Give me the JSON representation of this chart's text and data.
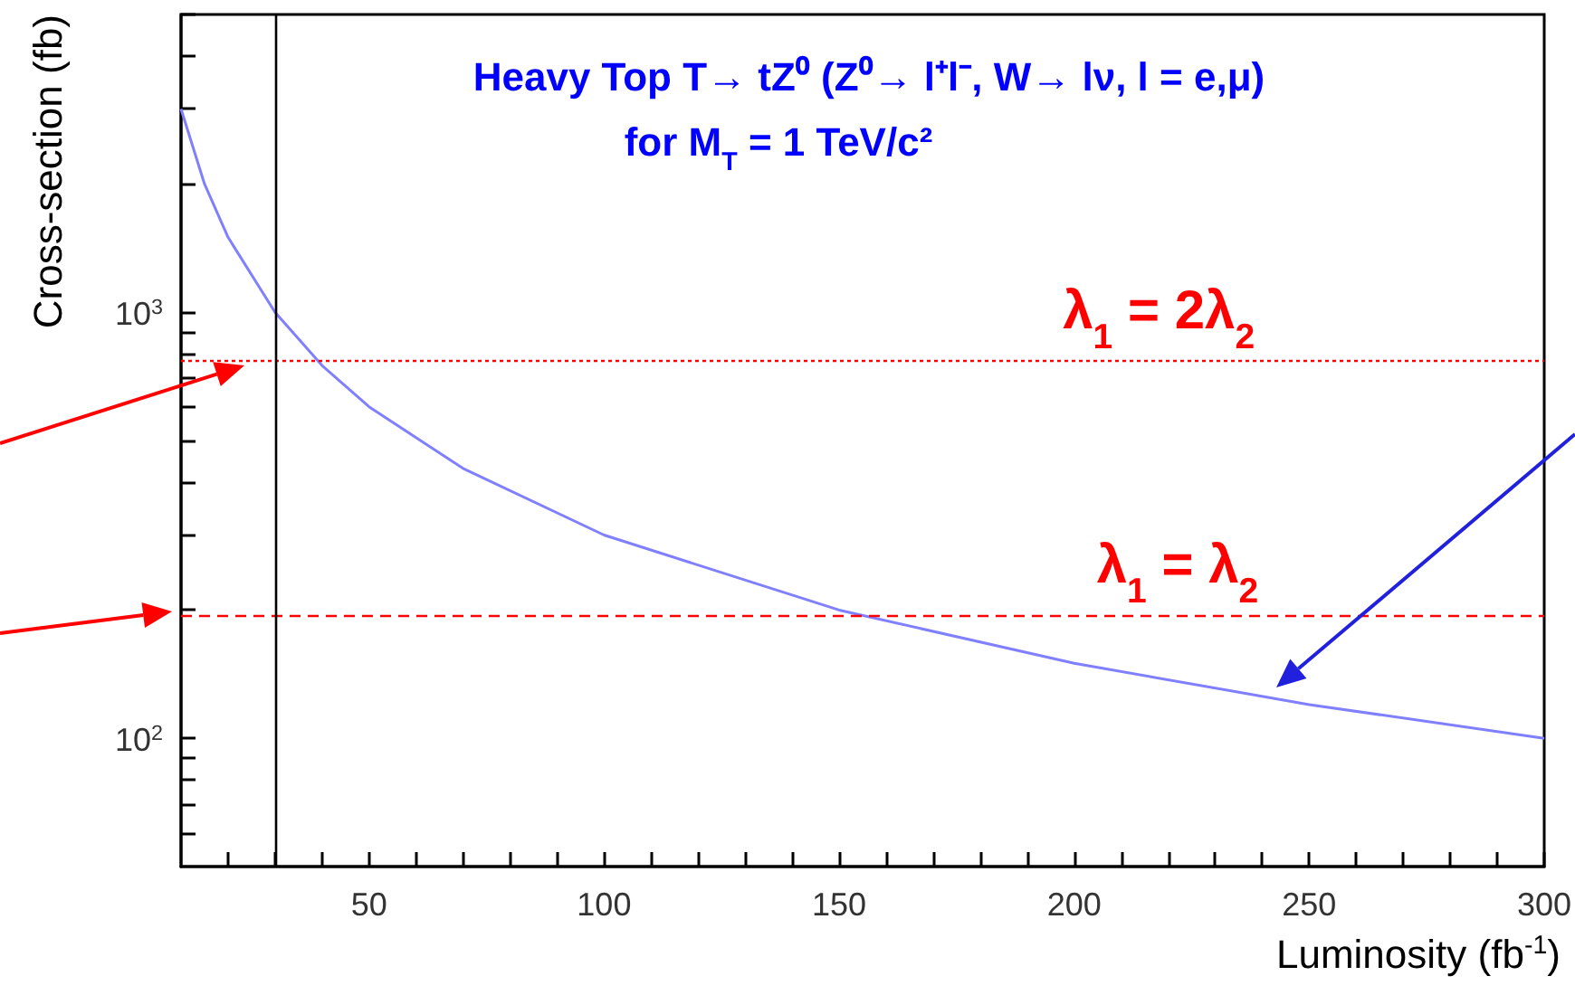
{
  "chart_data": {
    "type": "line",
    "title": "Heavy Top T→ tZ⁰ (Z⁰→ l⁺l⁻, W→ lν, l = e,μ)",
    "subtitle": "for M$_{T}$ = 1 TeV/c²",
    "xlabel": "Luminosity (fb$^{-1}$)",
    "ylabel": "Cross-section (fb)",
    "x": [
      10,
      15,
      20,
      30,
      40,
      50,
      70,
      100,
      150,
      200,
      250,
      300
    ],
    "series": [
      {
        "color": "#8080ff",
        "values": [
          3000,
          2000,
          1500,
          1000,
          750,
          600,
          430,
          300,
          200,
          150,
          120,
          100
        ]
      }
    ],
    "xlim": [
      10,
      300
    ],
    "xticks": [
      {
        "value": 20,
        "label": null
      },
      {
        "value": 30,
        "label": null
      },
      {
        "value": 40,
        "label": null
      },
      50,
      {
        "value": 60,
        "label": null
      },
      {
        "value": 70,
        "label": null
      },
      {
        "value": 80,
        "label": null
      },
      {
        "value": 90,
        "label": null
      },
      100,
      {
        "value": 110,
        "label": null
      },
      {
        "value": 120,
        "label": null
      },
      {
        "value": 130,
        "label": null
      },
      {
        "value": 140,
        "label": null
      },
      150,
      {
        "value": 160,
        "label": null
      },
      {
        "value": 170,
        "label": null
      },
      {
        "value": 180,
        "label": null
      },
      {
        "value": 190,
        "label": null
      },
      200,
      {
        "value": 210,
        "label": null
      },
      {
        "value": 220,
        "label": null
      },
      {
        "value": 230,
        "label": null
      },
      {
        "value": 240,
        "label": null
      },
      250,
      {
        "value": 260,
        "label": null
      },
      {
        "value": 270,
        "label": null
      },
      {
        "value": 280,
        "label": null
      },
      {
        "value": 290,
        "label": null
      },
      300
    ],
    "ylim": [
      50,
      5000
    ],
    "log": "y",
    "yticks": [
      {
        "value": 60,
        "label": null
      },
      {
        "value": 70,
        "label": null
      },
      {
        "value": 80,
        "label": null
      },
      {
        "value": 90,
        "label": null
      },
      {
        "value": 100,
        "label": "10$^{2}$"
      },
      {
        "value": 200,
        "label": null
      },
      {
        "value": 300,
        "label": null
      },
      {
        "value": 400,
        "label": null
      },
      {
        "value": 500,
        "label": null
      },
      {
        "value": 600,
        "label": null
      },
      {
        "value": 700,
        "label": null
      },
      {
        "value": 800,
        "label": null
      },
      {
        "value": 900,
        "label": null
      },
      {
        "value": 1000,
        "label": "10$^{3}$"
      },
      {
        "value": 2000,
        "label": null
      },
      {
        "value": 3000,
        "label": null
      },
      {
        "value": 4000,
        "label": null
      },
      {
        "value": 5000,
        "label": null
      }
    ],
    "ref_lines": [
      {
        "axis": "y",
        "value": 770,
        "color": "#ff0000",
        "line_style": "dotted"
      },
      {
        "axis": "y",
        "value": 195,
        "color": "#ff0000",
        "line_style": "dashed"
      },
      {
        "axis": "x",
        "value": 30,
        "color": "#000000",
        "line_style": "solid"
      }
    ],
    "annotations": [
      {
        "text": "λ$_{1}$ = 2λ$_{2}$",
        "x": 218,
        "y": 770
      },
      {
        "text": "λ$_{1}$ = λ$_{2}$",
        "x": 222,
        "y": 195
      }
    ],
    "grid": false,
    "marker": "none",
    "line_style": "solid"
  }
}
